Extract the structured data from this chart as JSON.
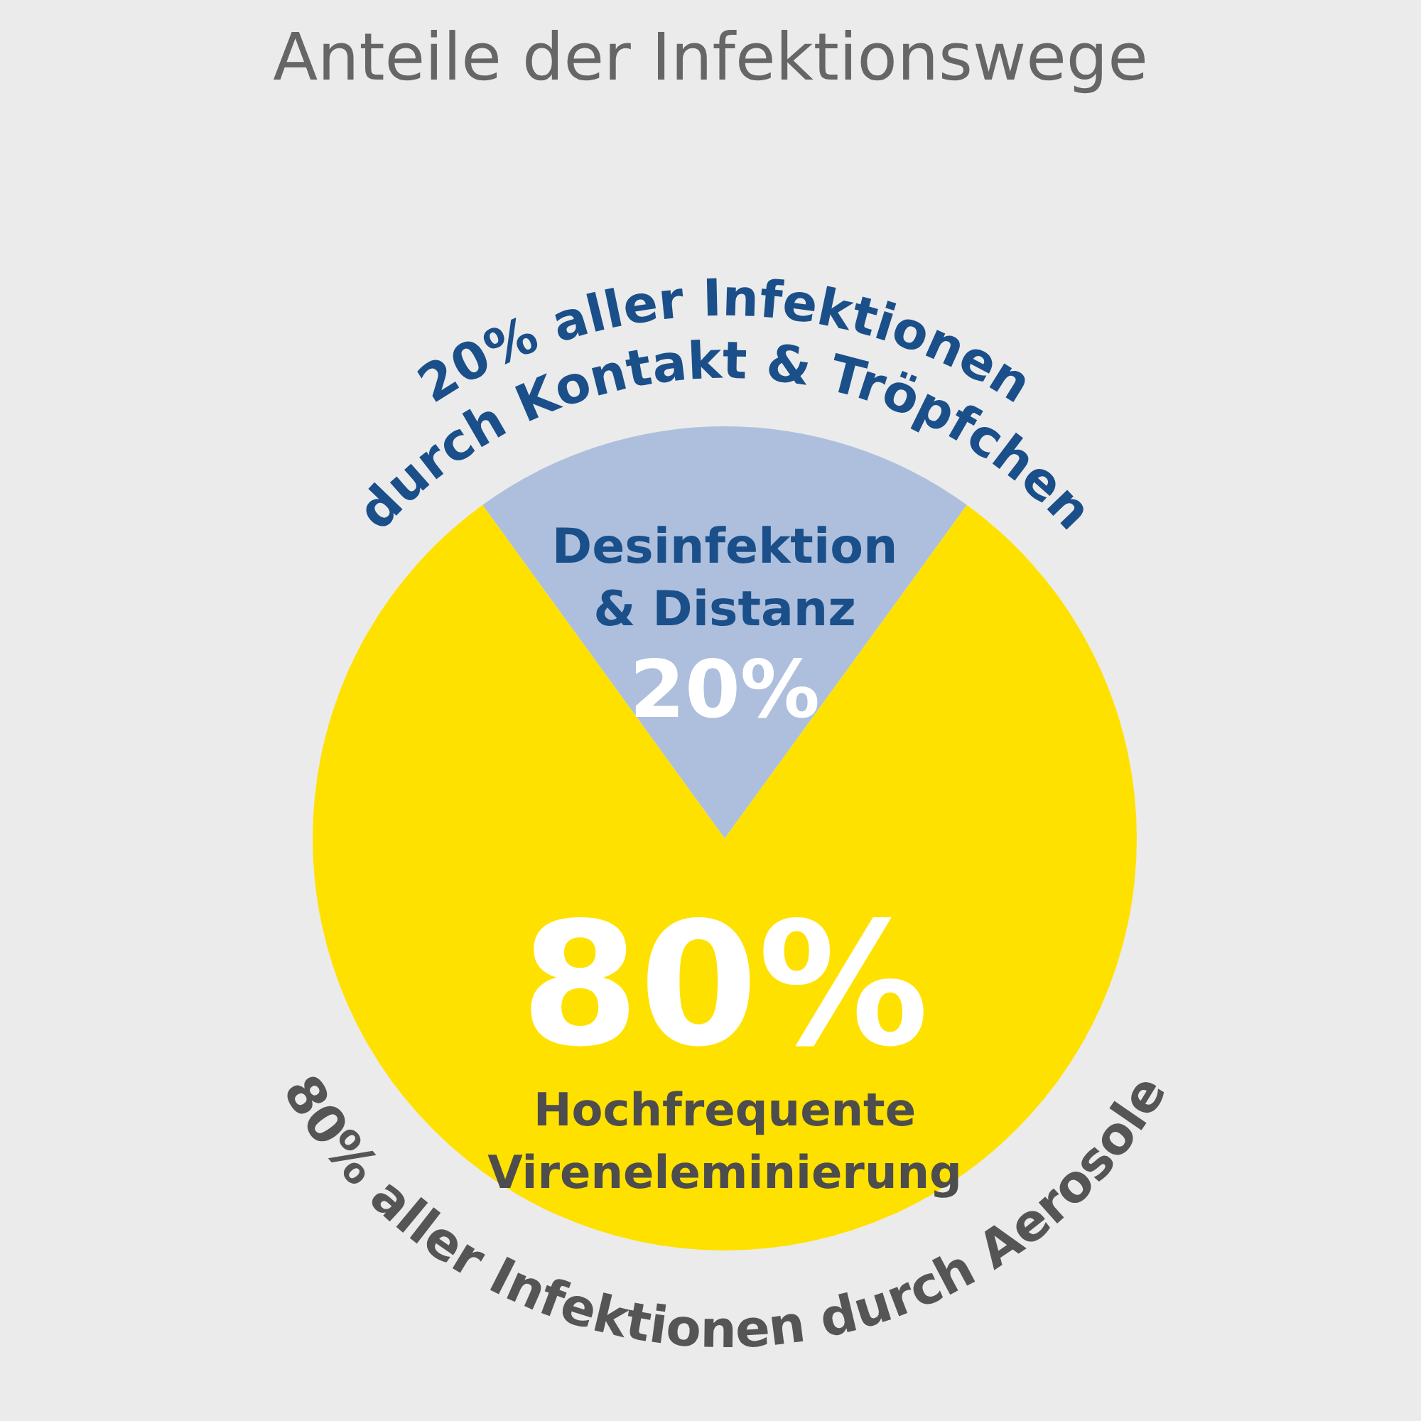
{
  "chart_data": {
    "type": "pie",
    "title": "Anteile der Infektionswege",
    "categories": [
      "Desinfektion & Distanz",
      "Hochfrequente Vireneleminierung"
    ],
    "values": [
      20,
      80
    ],
    "value_labels": [
      "20%",
      "80%"
    ],
    "colors": [
      "#adbfdd",
      "#ffe100"
    ],
    "annotations": [
      "20% aller Infektionen",
      "durch Kontakt & Tröpfchen",
      "80% aller Infektionen durch Aerosole"
    ],
    "legend": false
  }
}
